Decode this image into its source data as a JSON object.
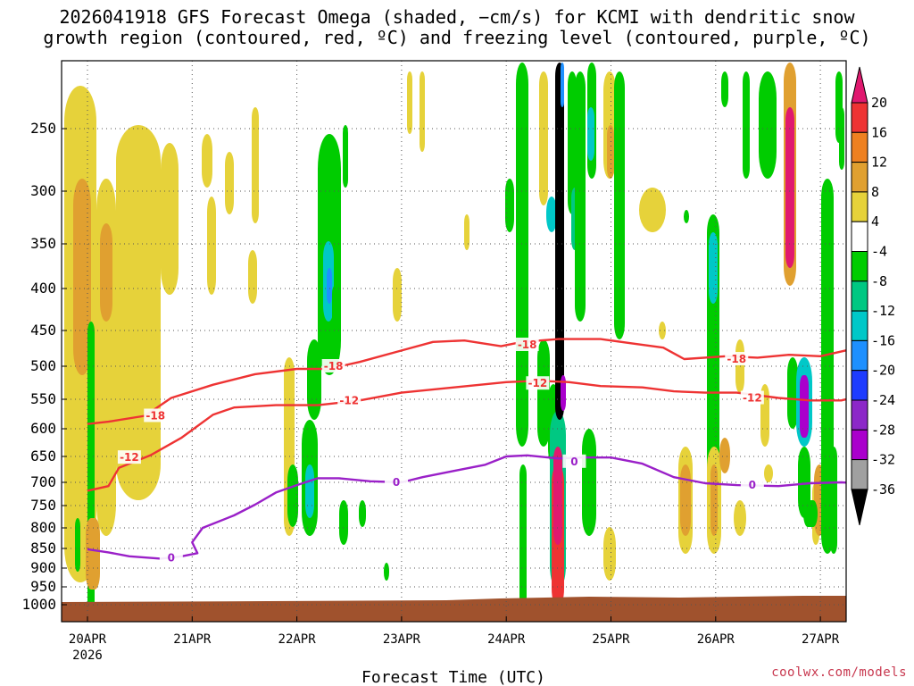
{
  "title_line1": "2026041918 GFS Forecast Omega (shaded, −cm/s) for KCMI with dendritic snow",
  "title_line2": "growth region (contoured, red, ºC) and freezing level (contoured, purple, ºC)",
  "credit": "coolwx.com/models",
  "chart_data": {
    "type": "time-height cross section (filled contours + line contours)",
    "xlabel": "Forecast Time (UTC)",
    "x_ticks": [
      "20APR",
      "21APR",
      "22APR",
      "23APR",
      "24APR",
      "25APR",
      "26APR",
      "27APR"
    ],
    "x_subtick": "2026",
    "x_range_days": [
      "2026-04-19 18Z",
      "2026-04-27 18Z"
    ],
    "y_ticks": [
      250,
      300,
      350,
      400,
      450,
      500,
      550,
      600,
      650,
      700,
      750,
      800,
      850,
      900,
      950,
      1000
    ],
    "y_range_hPa": [
      200,
      1000
    ],
    "y_reversed": true,
    "grid": "dotted",
    "colorbar": {
      "labels": [
        "20",
        "16",
        "12",
        "8",
        "4",
        "-4",
        "-8",
        "-12",
        "-16",
        "-20",
        "-24",
        "-28",
        "-32",
        "-36"
      ],
      "bins": [
        {
          "range": ">20",
          "color": "#e0196f"
        },
        {
          "range": "16 to 20",
          "color": "#ee3333"
        },
        {
          "range": "12 to 16",
          "color": "#ee8020"
        },
        {
          "range": "8 to 12",
          "color": "#e0a030"
        },
        {
          "range": "4 to 8",
          "color": "#e6d23a"
        },
        {
          "range": "-4 to 4",
          "color": "#ffffff"
        },
        {
          "range": "-8 to -4",
          "color": "#00cc00"
        },
        {
          "range": "-12 to -8",
          "color": "#00c882"
        },
        {
          "range": "-16 to -12",
          "color": "#00c8c8"
        },
        {
          "range": "-20 to -16",
          "color": "#1e90ff"
        },
        {
          "range": "-24 to -20",
          "color": "#1e3cff"
        },
        {
          "range": "-28 to -24",
          "color": "#8c28c8"
        },
        {
          "range": "-32 to -28",
          "color": "#aa00cc"
        },
        {
          "range": "-36 to -32",
          "color": "#a0a0a0"
        },
        {
          "range": "<-36",
          "color": "#000000"
        }
      ]
    },
    "contours": [
      {
        "level": "-18",
        "color": "#ee3333",
        "points": [
          [
            0.0,
            592
          ],
          [
            0.2,
            588
          ],
          [
            0.55,
            578
          ],
          [
            0.8,
            548
          ],
          [
            1.2,
            528
          ],
          [
            1.6,
            512
          ],
          [
            2.0,
            504
          ],
          [
            2.3,
            504
          ],
          [
            2.6,
            494
          ],
          [
            3.0,
            478
          ],
          [
            3.3,
            466
          ],
          [
            3.6,
            464
          ],
          [
            3.95,
            472
          ],
          [
            4.15,
            466
          ],
          [
            4.5,
            462
          ],
          [
            4.9,
            462
          ],
          [
            5.2,
            468
          ],
          [
            5.5,
            474
          ],
          [
            5.7,
            490
          ],
          [
            6.1,
            486
          ],
          [
            6.4,
            488
          ],
          [
            6.7,
            484
          ],
          [
            7.0,
            486
          ],
          [
            7.3,
            476
          ],
          [
            7.6,
            472
          ],
          [
            8.0,
            472
          ]
        ],
        "labels": [
          [
            0.65,
            578
          ],
          [
            2.35,
            500
          ],
          [
            4.2,
            470
          ],
          [
            6.2,
            490
          ]
        ]
      },
      {
        "level": "-12",
        "color": "#ee3333",
        "points": [
          [
            0.0,
            718
          ],
          [
            0.2,
            708
          ],
          [
            0.3,
            672
          ],
          [
            0.6,
            648
          ],
          [
            0.9,
            616
          ],
          [
            1.2,
            576
          ],
          [
            1.4,
            564
          ],
          [
            1.8,
            560
          ],
          [
            2.2,
            560
          ],
          [
            2.6,
            552
          ],
          [
            3.0,
            540
          ],
          [
            3.5,
            532
          ],
          [
            4.0,
            524
          ],
          [
            4.3,
            522
          ],
          [
            4.6,
            524
          ],
          [
            4.9,
            530
          ],
          [
            5.3,
            532
          ],
          [
            5.6,
            538
          ],
          [
            5.9,
            540
          ],
          [
            6.2,
            540
          ],
          [
            6.6,
            548
          ],
          [
            6.9,
            552
          ],
          [
            7.2,
            552
          ],
          [
            7.5,
            540
          ],
          [
            7.8,
            528
          ],
          [
            8.0,
            524
          ]
        ],
        "labels": [
          [
            0.4,
            652
          ],
          [
            2.5,
            552
          ],
          [
            4.3,
            526
          ],
          [
            6.35,
            548
          ]
        ]
      },
      {
        "level": "0",
        "color": "#9a20c8",
        "points": [
          [
            0.0,
            852
          ],
          [
            0.2,
            860
          ],
          [
            0.4,
            870
          ],
          [
            0.7,
            876
          ],
          [
            0.9,
            870
          ],
          [
            1.05,
            862
          ],
          [
            1.0,
            835
          ],
          [
            1.1,
            800
          ],
          [
            1.4,
            772
          ],
          [
            1.6,
            748
          ],
          [
            1.8,
            722
          ],
          [
            2.0,
            706
          ],
          [
            2.2,
            692
          ],
          [
            2.4,
            692
          ],
          [
            2.7,
            698
          ],
          [
            3.0,
            700
          ],
          [
            3.2,
            690
          ],
          [
            3.5,
            678
          ],
          [
            3.8,
            666
          ],
          [
            4.0,
            650
          ],
          [
            4.2,
            648
          ],
          [
            4.5,
            654
          ],
          [
            4.7,
            652
          ],
          [
            5.0,
            652
          ],
          [
            5.3,
            664
          ],
          [
            5.6,
            690
          ],
          [
            5.9,
            702
          ],
          [
            6.2,
            706
          ],
          [
            6.6,
            708
          ],
          [
            6.9,
            702
          ],
          [
            7.2,
            700
          ],
          [
            7.5,
            704
          ],
          [
            7.7,
            690
          ],
          [
            8.0,
            684
          ]
        ],
        "labels": [
          [
            0.8,
            874
          ],
          [
            2.95,
            700
          ],
          [
            4.65,
            660
          ],
          [
            6.35,
            706
          ]
        ]
      }
    ]
  }
}
